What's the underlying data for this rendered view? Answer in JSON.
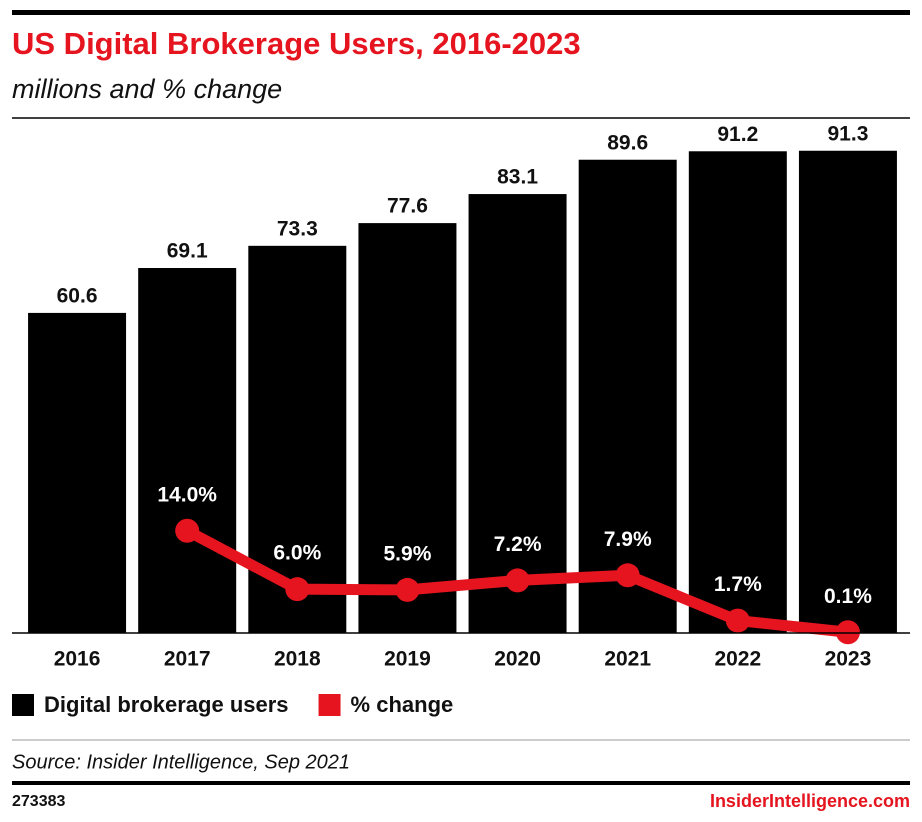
{
  "chart_data": {
    "type": "bar_line",
    "title": "US Digital Brokerage Users, 2016-2023",
    "subtitle": "millions and % change",
    "categories": [
      "2016",
      "2017",
      "2018",
      "2019",
      "2020",
      "2021",
      "2022",
      "2023"
    ],
    "series": [
      {
        "name": "Digital brokerage users",
        "type": "bar",
        "color": "#000000",
        "values": [
          60.6,
          69.1,
          73.3,
          77.6,
          83.1,
          89.6,
          91.2,
          91.3
        ]
      },
      {
        "name": "% change",
        "type": "line",
        "axis": "y2",
        "color": "#e5141e",
        "values": [
          null,
          14.0,
          6.0,
          5.9,
          7.2,
          7.9,
          1.7,
          0.1
        ],
        "value_labels": [
          null,
          "14.0%",
          "6.0%",
          "5.9%",
          "7.2%",
          "7.9%",
          "1.7%",
          "0.1%"
        ]
      }
    ],
    "ylim": [
      0,
      97.5
    ],
    "y2lim": [
      0,
      70.5
    ],
    "source": "Source: Insider Intelligence, Sep 2021",
    "chart_id": "273383",
    "brand": "InsiderIntelligence.com"
  }
}
